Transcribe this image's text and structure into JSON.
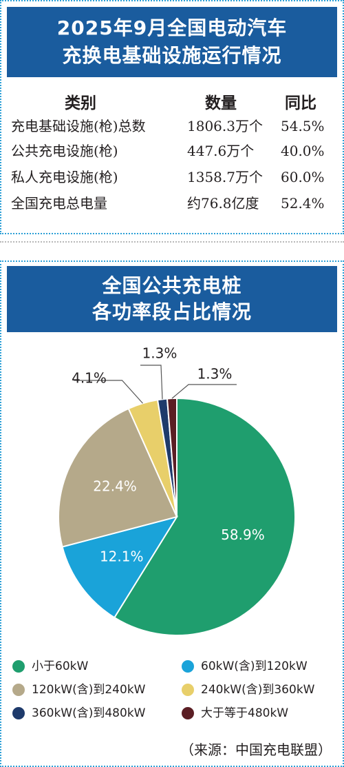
{
  "top_panel": {
    "title_line1": "2025年9月全国电动汽车",
    "title_line2": "充换电基础设施运行情况",
    "columns": [
      "类别",
      "数量",
      "同比"
    ],
    "rows": [
      {
        "category": "充电基础设施(枪)总数",
        "quantity": "1806.3万个",
        "yoy": "54.5%"
      },
      {
        "category": "公共充电设施(枪)",
        "quantity": "447.6万个",
        "yoy": "40.0%"
      },
      {
        "category": "私人充电设施(枪)",
        "quantity": "1358.7万个",
        "yoy": "60.0%"
      },
      {
        "category": "全国充电总电量",
        "quantity": "约76.8亿度",
        "yoy": "52.4%"
      }
    ]
  },
  "bottom_panel": {
    "title_line1": "全国公共充电桩",
    "title_line2": "各功率段占比情况",
    "source": "（来源：中国充电联盟）"
  },
  "chart_data": {
    "type": "pie",
    "title": "全国公共充电桩各功率段占比情况",
    "slices": [
      {
        "label": "小于60kW",
        "value": 58.9,
        "display": "58.9%",
        "color": "#1f9e6e"
      },
      {
        "label": "60kW(含)到120kW",
        "value": 12.1,
        "display": "12.1%",
        "color": "#1aa3d9"
      },
      {
        "label": "120kW(含)到240kW",
        "value": 22.4,
        "display": "22.4%",
        "color": "#b5a98a"
      },
      {
        "label": "240kW(含)到360kW",
        "value": 4.1,
        "display": "4.1%",
        "color": "#e8cf6a"
      },
      {
        "label": "360kW(含)到480kW",
        "value": 1.3,
        "display": "1.3%",
        "color": "#1e3a6b"
      },
      {
        "label": "大于等于480kW",
        "value": 1.3,
        "display": "1.3%",
        "color": "#5b1e24"
      }
    ],
    "legend_position": "bottom"
  }
}
